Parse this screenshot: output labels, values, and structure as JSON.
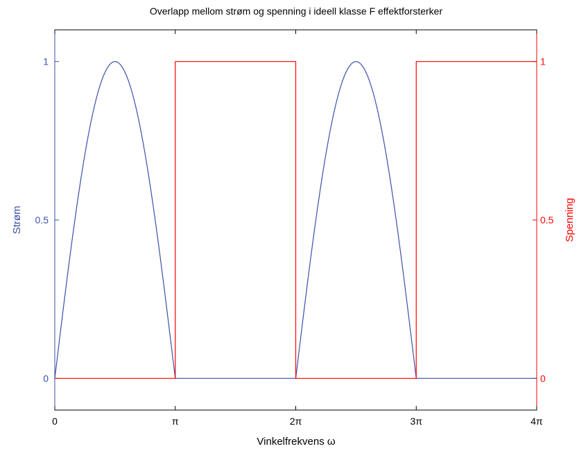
{
  "colors": {
    "left_axis": "#3b4fa8",
    "right_axis": "#ff0000",
    "current": "#3b4fa8",
    "voltage": "#ff0000",
    "frame": "#000000"
  },
  "chart_data": {
    "type": "line",
    "title": "Overlapp mellom strøm og spenning i ideell klasse F effektforsterker",
    "xlabel": "Vinkelfrekvens ω",
    "ylabel_left": "Strøm",
    "ylabel_right": "Spenning",
    "xlim": [
      0,
      12.566
    ],
    "ylim_left": [
      -0.1,
      1.1
    ],
    "ylim_right": [
      -0.1,
      1.1
    ],
    "x_ticks": [
      {
        "value": 0,
        "label": "0"
      },
      {
        "value": 3.1416,
        "label": "π"
      },
      {
        "value": 6.2832,
        "label": "2π"
      },
      {
        "value": 9.4248,
        "label": "3π"
      },
      {
        "value": 12.566,
        "label": "4π"
      }
    ],
    "y_ticks_left": [
      {
        "value": 0,
        "label": "0"
      },
      {
        "value": 0.5,
        "label": "0.5"
      },
      {
        "value": 1,
        "label": "1"
      }
    ],
    "y_ticks_right": [
      {
        "value": 0,
        "label": "0"
      },
      {
        "value": 0.5,
        "label": "0.5"
      },
      {
        "value": 1,
        "label": "1"
      }
    ],
    "grid": false,
    "series": [
      {
        "axis": "left",
        "x": [
          0,
          0.3927,
          0.7854,
          1.1781,
          1.5708,
          1.9635,
          2.3562,
          2.7489,
          3.1416,
          3.1416,
          6.2832,
          6.2832,
          6.6759,
          7.0686,
          7.4613,
          7.854,
          8.2467,
          8.6394,
          9.0321,
          9.4248,
          9.4248,
          12.566
        ],
        "y": [
          0,
          0.383,
          0.707,
          0.924,
          1.0,
          0.924,
          0.707,
          0.383,
          0,
          0,
          0,
          0,
          0.383,
          0.707,
          0.924,
          1.0,
          0.924,
          0.707,
          0.383,
          0,
          0,
          0
        ]
      },
      {
        "axis": "right",
        "x": [
          0,
          3.1416,
          3.1416,
          6.2832,
          6.2832,
          9.4248,
          9.4248,
          12.566
        ],
        "y": [
          0,
          0,
          1,
          1,
          0,
          0,
          1,
          1
        ]
      }
    ]
  }
}
